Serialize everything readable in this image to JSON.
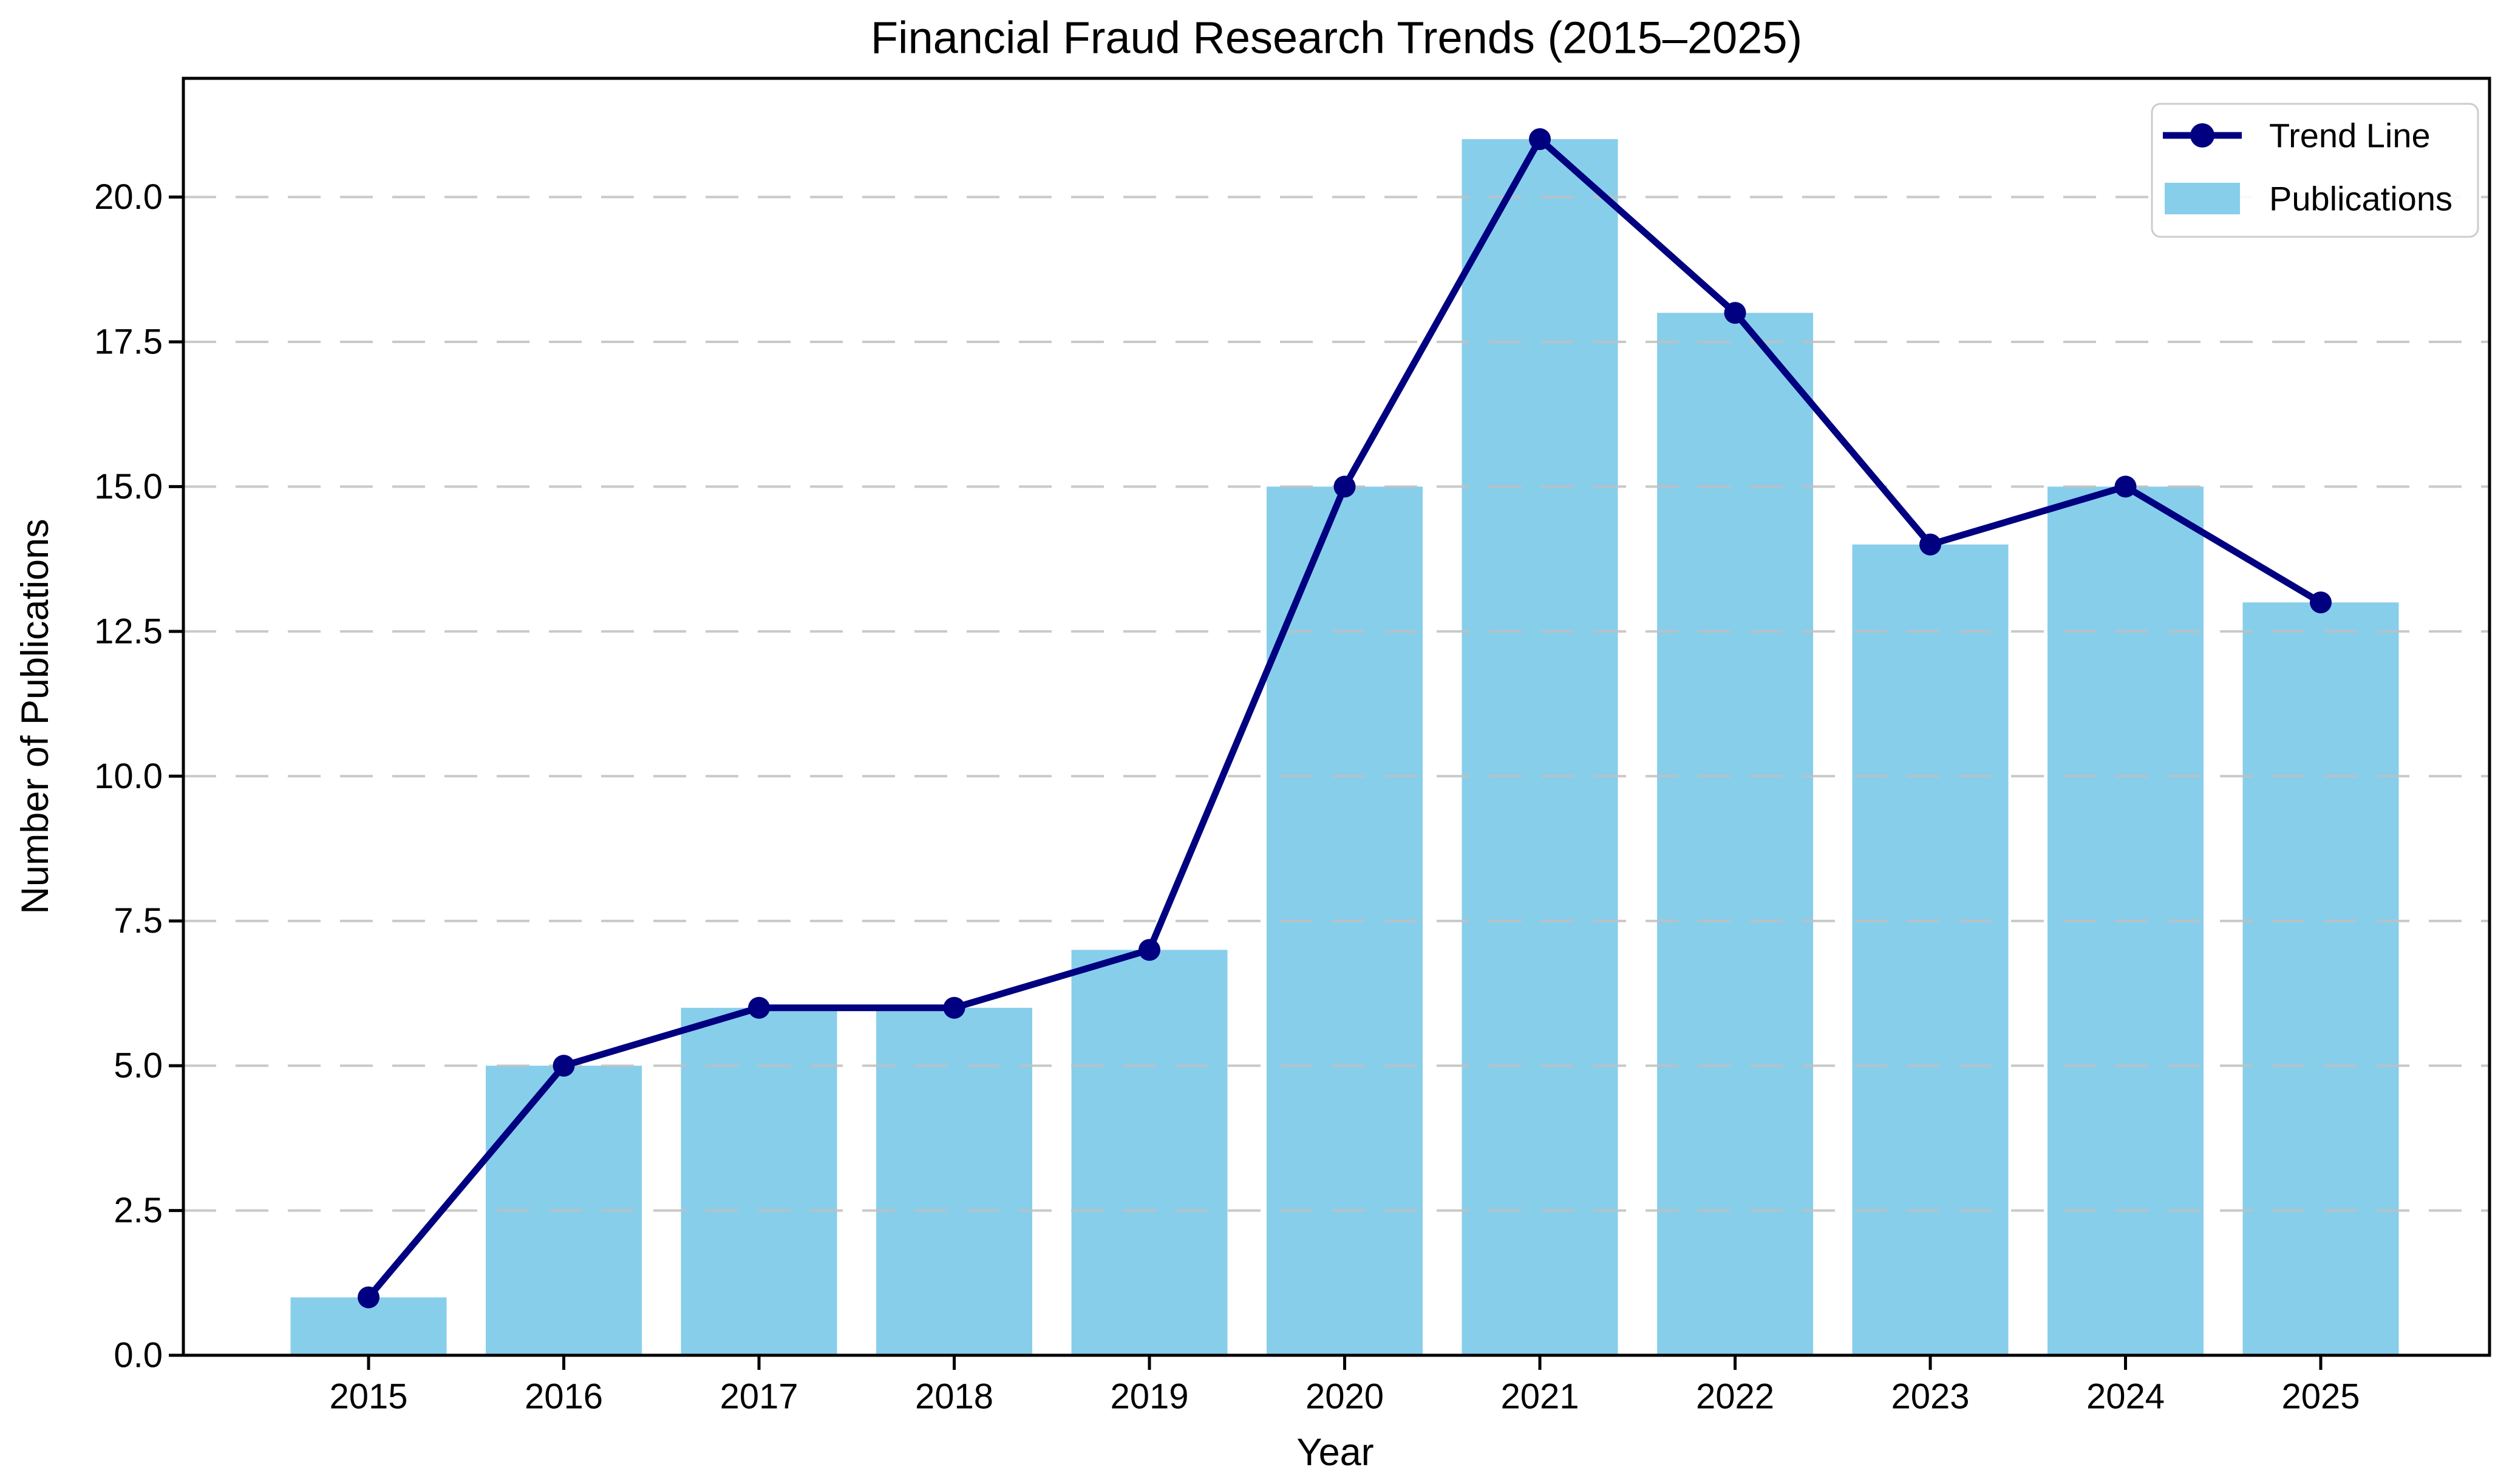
{
  "chart_data": {
    "type": "bar",
    "title": "Financial Fraud Research Trends (2015–2025)",
    "xlabel": "Year",
    "ylabel": "Number of Publications",
    "categories": [
      "2015",
      "2016",
      "2017",
      "2018",
      "2019",
      "2020",
      "2021",
      "2022",
      "2023",
      "2024",
      "2025"
    ],
    "series": [
      {
        "name": "Trend Line",
        "kind": "line",
        "color": "#000080",
        "values": [
          1,
          5,
          6,
          6,
          7,
          15,
          21,
          18,
          14,
          15,
          13
        ]
      },
      {
        "name": "Publications",
        "kind": "bar",
        "color": "#87CEEB",
        "values": [
          1,
          5,
          6,
          6,
          7,
          15,
          21,
          18,
          14,
          15,
          13
        ]
      }
    ],
    "ylim": [
      0,
      22.05
    ],
    "yticks": [
      0,
      2.5,
      5,
      7.5,
      10,
      12.5,
      15,
      17.5,
      20
    ],
    "ytick_labels": [
      "0.0",
      "2.5",
      "5.0",
      "7.5",
      "10.0",
      "12.5",
      "15.0",
      "17.5",
      "20.0"
    ],
    "grid": true,
    "grid_style": "dashed",
    "legend_position": "upper right"
  },
  "colors": {
    "bar_fill": "#87CEEB",
    "line": "#000080",
    "grid": "#bfbfbf",
    "axis": "#000000",
    "legend_border": "#cccccc",
    "background": "#ffffff"
  }
}
